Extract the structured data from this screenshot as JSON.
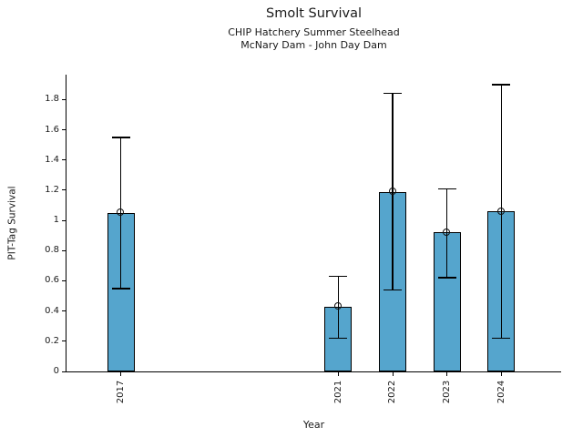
{
  "chart_data": {
    "type": "bar",
    "title": "Smolt Survival",
    "subtitle1": "CHIP Hatchery Summer Steelhead",
    "subtitle2": "McNary Dam - John Day Dam",
    "xlabel": "Year",
    "ylabel": "PIT-Tag Survival",
    "categories": [
      2017,
      2021,
      2022,
      2023,
      2024
    ],
    "series": [
      {
        "name": "PIT-Tag Survival",
        "values": [
          1.05,
          0.43,
          1.19,
          0.92,
          1.06
        ],
        "error_low": [
          0.55,
          0.22,
          0.54,
          0.62,
          0.22
        ],
        "error_high": [
          1.55,
          0.63,
          1.84,
          1.21,
          1.9
        ]
      }
    ],
    "yticks": [
      0,
      0.2,
      0.4,
      0.6,
      0.8,
      1,
      1.2,
      1.4,
      1.6,
      1.8
    ],
    "ylim": [
      0,
      1.965
    ],
    "xlim": [
      2016,
      2025.1
    ],
    "grid": false,
    "legend": false,
    "marker": "open-circle",
    "bar_color": "#55a5cd",
    "bar_edge_color": "#000000",
    "error_color": "#000000"
  }
}
